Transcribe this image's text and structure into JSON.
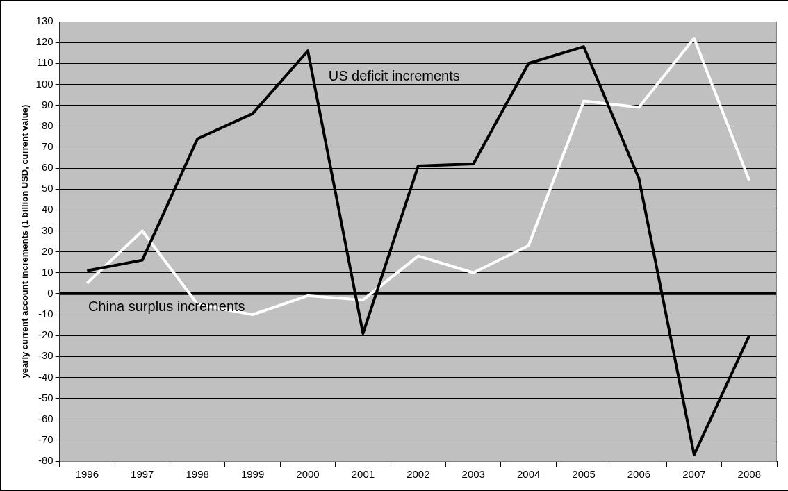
{
  "chart_data": {
    "type": "line",
    "ylabel": "yearly current account increments (1 billion USD, current value)",
    "categories": [
      "1996",
      "1997",
      "1998",
      "1999",
      "2000",
      "2001",
      "2002",
      "2003",
      "2004",
      "2005",
      "2006",
      "2007",
      "2008"
    ],
    "series": [
      {
        "name": "US deficit increments",
        "color": "#000000",
        "values": [
          11,
          16,
          74,
          86,
          116,
          -19,
          61,
          62,
          110,
          118,
          55,
          -77,
          -20
        ]
      },
      {
        "name": "China surplus increments",
        "color": "#ffffff",
        "values": [
          5,
          30,
          -5,
          -10,
          -1,
          -3,
          18,
          10,
          23,
          92,
          89,
          122,
          54
        ]
      }
    ],
    "ylim": [
      -80,
      130
    ],
    "yticks": [
      -80,
      -70,
      -60,
      -50,
      -40,
      -30,
      -20,
      -10,
      0,
      10,
      20,
      30,
      40,
      50,
      60,
      70,
      80,
      90,
      100,
      110,
      120,
      130
    ],
    "grid": "y",
    "legend": false,
    "marker": "none",
    "line_style": "solid",
    "ref_lines": [
      {
        "axis": "y",
        "value": 0,
        "color": "#000000"
      }
    ]
  }
}
